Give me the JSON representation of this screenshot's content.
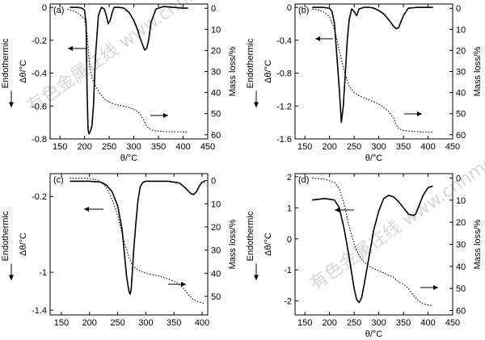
{
  "figure": {
    "watermark": "有色金属在线 www.cnnmol.com"
  },
  "chart_data": [
    {
      "panel": "(a)",
      "type": "line",
      "xlabel": "θ/°C",
      "ylabel_left": "Δθ/°C",
      "ylabel_right": "Mass loss/%",
      "side_label": "Endothermic",
      "xlim": [
        130,
        450
      ],
      "xticks": [
        150,
        200,
        250,
        300,
        350,
        400,
        450
      ],
      "ylim_left": [
        -0.8,
        0.02
      ],
      "yticks_left": [
        0,
        -0.2,
        -0.4,
        -0.6,
        -0.8
      ],
      "ylim_right": [
        -2,
        62
      ],
      "yticks_right": [
        0,
        10,
        20,
        30,
        40,
        50,
        60
      ],
      "series": [
        {
          "axis": "left",
          "style": "solid",
          "x": [
            170,
            185,
            195,
            200,
            203,
            205,
            207,
            209,
            212,
            215,
            218,
            222,
            228,
            234,
            240,
            244,
            248,
            252,
            256,
            260,
            270,
            280,
            290,
            300,
            308,
            313,
            318,
            322,
            326,
            330,
            335,
            345,
            360,
            380,
            400,
            410
          ],
          "y": [
            0.0,
            0.0,
            -0.005,
            -0.02,
            -0.1,
            -0.5,
            -0.74,
            -0.77,
            -0.75,
            -0.72,
            -0.6,
            -0.3,
            -0.05,
            0.0,
            -0.01,
            -0.05,
            -0.1,
            -0.08,
            -0.03,
            0.0,
            0.0,
            -0.005,
            -0.03,
            -0.08,
            -0.14,
            -0.19,
            -0.23,
            -0.26,
            -0.25,
            -0.2,
            -0.09,
            -0.01,
            0.005,
            0.0,
            -0.005,
            -0.005
          ]
        },
        {
          "axis": "right",
          "style": "dotted",
          "x": [
            165,
            180,
            190,
            200,
            205,
            210,
            215,
            220,
            230,
            240,
            250,
            260,
            270,
            280,
            290,
            300,
            310,
            315,
            320,
            325,
            330,
            335,
            340,
            350,
            360,
            380,
            400,
            410
          ],
          "y": [
            0.5,
            1.5,
            3,
            5,
            12,
            27,
            33,
            36,
            40,
            43,
            44.5,
            45.5,
            46,
            46.5,
            47,
            48,
            49.5,
            51,
            53,
            55.5,
            57,
            57.6,
            58,
            58.3,
            58.5,
            58.6,
            58.7,
            58.7
          ]
        }
      ]
    },
    {
      "panel": "(b)",
      "type": "line",
      "xlabel": "θ/°C",
      "ylabel_left": "Δθ/°C",
      "ylabel_right": "Mass loss/%",
      "side_label": "Endothermic",
      "xlim": [
        130,
        450
      ],
      "xticks": [
        150,
        200,
        250,
        300,
        350,
        400,
        450
      ],
      "ylim_left": [
        -1.6,
        0.04
      ],
      "yticks_left": [
        0,
        -0.4,
        -0.8,
        -1.2,
        -1.6
      ],
      "ylim_right": [
        -2,
        62
      ],
      "yticks_right": [
        0,
        10,
        20,
        30,
        40,
        50,
        60
      ],
      "series": [
        {
          "axis": "left",
          "style": "solid",
          "x": [
            165,
            185,
            200,
            205,
            210,
            215,
            220,
            224,
            228,
            232,
            236,
            240,
            245,
            250,
            255,
            260,
            270,
            280,
            290,
            300,
            310,
            320,
            330,
            335,
            340,
            350,
            360,
            380,
            400,
            410
          ],
          "y": [
            0.0,
            0.0,
            -0.01,
            -0.05,
            -0.2,
            -0.6,
            -1.0,
            -1.4,
            -1.2,
            -0.8,
            -0.4,
            -0.15,
            -0.02,
            -0.05,
            -0.1,
            -0.02,
            0.0,
            0.0,
            -0.01,
            -0.04,
            -0.08,
            -0.15,
            -0.23,
            -0.26,
            -0.25,
            -0.1,
            -0.01,
            0.0,
            0.0,
            0.0
          ]
        },
        {
          "axis": "right",
          "style": "dotted",
          "x": [
            165,
            180,
            190,
            200,
            210,
            220,
            230,
            240,
            250,
            260,
            270,
            280,
            290,
            300,
            310,
            320,
            330,
            335,
            340,
            345,
            350,
            360,
            380,
            400,
            410
          ],
          "y": [
            0.3,
            1,
            2,
            4,
            10,
            20,
            30,
            37,
            40,
            41.5,
            42.5,
            43.5,
            44.5,
            45.5,
            47,
            49,
            52,
            55,
            57,
            57.5,
            58,
            58.3,
            58.6,
            58.8,
            58.8
          ]
        }
      ]
    },
    {
      "panel": "(c)",
      "type": "line",
      "xlabel": "",
      "ylabel_left": "Δθ/°C",
      "ylabel_right": "Mass loss/%",
      "side_label": "Endothermic",
      "xlim": [
        130,
        410
      ],
      "xticks": [
        150,
        200,
        250,
        300,
        350,
        400
      ],
      "ylim_left": [
        -1.45,
        0.04
      ],
      "yticks_left": [
        -0.2,
        -1.0,
        -1.4
      ],
      "ylim_right": [
        -3,
        58
      ],
      "yticks_right": [
        0,
        10,
        20,
        30,
        40,
        50
      ],
      "series": [
        {
          "axis": "left",
          "style": "solid",
          "x": [
            165,
            180,
            200,
            220,
            230,
            240,
            250,
            258,
            262,
            266,
            270,
            272,
            274,
            276,
            278,
            282,
            286,
            290,
            295,
            300,
            320,
            340,
            360,
            370,
            380,
            385,
            390,
            395,
            400,
            405
          ],
          "y": [
            -0.04,
            -0.04,
            -0.04,
            -0.05,
            -0.08,
            -0.15,
            -0.3,
            -0.55,
            -0.8,
            -1.05,
            -1.2,
            -1.23,
            -1.18,
            -1.0,
            -0.8,
            -0.5,
            -0.25,
            -0.1,
            -0.05,
            -0.04,
            -0.04,
            -0.04,
            -0.06,
            -0.11,
            -0.17,
            -0.18,
            -0.15,
            -0.09,
            -0.05,
            -0.04
          ]
        },
        {
          "axis": "right",
          "style": "dotted",
          "x": [
            165,
            190,
            210,
            220,
            230,
            240,
            250,
            260,
            270,
            275,
            280,
            290,
            300,
            320,
            340,
            355,
            365,
            375,
            385,
            395,
            405
          ],
          "y": [
            -1,
            -1,
            -0.5,
            0.5,
            3,
            8,
            15,
            25,
            33,
            36,
            37.5,
            39,
            40,
            41,
            42.5,
            44,
            46,
            49,
            51.5,
            52.5,
            53
          ]
        }
      ]
    },
    {
      "panel": "(d)",
      "type": "line",
      "xlabel": "θ/°C",
      "ylabel_left": "Δθ/°C",
      "ylabel_right": "Mass loss/%",
      "side_label": "Endothermic",
      "xlim": [
        130,
        450
      ],
      "xticks": [
        150,
        200,
        250,
        300,
        350,
        400,
        450
      ],
      "ylim_left": [
        -2.45,
        2.1
      ],
      "yticks_left": [
        2,
        1,
        0,
        -1,
        -2
      ],
      "ylim_right": [
        -2,
        62
      ],
      "yticks_right": [
        0,
        10,
        20,
        30,
        40,
        50,
        60
      ],
      "series": [
        {
          "axis": "left",
          "style": "solid",
          "x": [
            165,
            190,
            210,
            220,
            230,
            240,
            250,
            255,
            260,
            265,
            270,
            280,
            290,
            300,
            310,
            320,
            330,
            340,
            350,
            360,
            370,
            375,
            380,
            390,
            400,
            410
          ],
          "y": [
            1.25,
            1.3,
            1.25,
            1.0,
            0.3,
            -0.6,
            -1.6,
            -1.95,
            -2.05,
            -1.9,
            -1.5,
            -0.6,
            0.3,
            0.9,
            1.3,
            1.4,
            1.35,
            1.2,
            1.0,
            0.8,
            0.75,
            0.8,
            1.0,
            1.4,
            1.65,
            1.7
          ]
        },
        {
          "axis": "right",
          "style": "dotted",
          "x": [
            165,
            190,
            210,
            220,
            230,
            240,
            250,
            260,
            270,
            280,
            290,
            300,
            310,
            320,
            330,
            340,
            350,
            360,
            370,
            380,
            390,
            400,
            410
          ],
          "y": [
            0,
            0.5,
            2,
            5,
            12,
            22,
            30,
            35,
            38,
            40,
            41,
            42,
            43,
            44,
            45,
            47,
            48,
            50,
            53,
            55.5,
            57,
            57.5,
            57.8
          ]
        }
      ]
    }
  ]
}
